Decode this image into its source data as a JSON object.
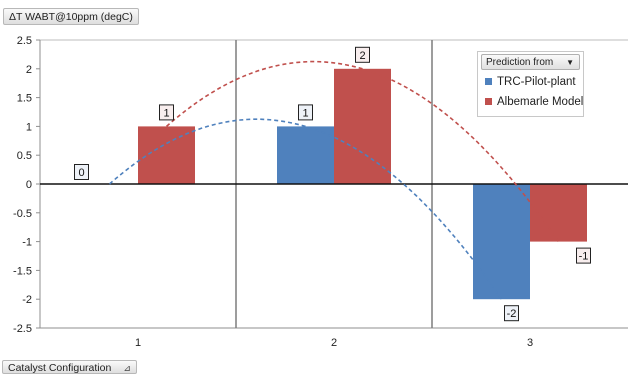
{
  "y_field_button": "ΔT WABT@10ppm (degC)",
  "x_field_button": "Catalyst Configuration",
  "legend": {
    "header": "Prediction from",
    "items": [
      {
        "label": "TRC-Pilot-plant",
        "color": "#4f81bd"
      },
      {
        "label": "Albemarle Model",
        "color": "#c0504d"
      }
    ]
  },
  "chart_data": {
    "type": "bar",
    "categories": [
      "1",
      "2",
      "3"
    ],
    "series": [
      {
        "name": "TRC-Pilot-plant",
        "color": "#4f81bd",
        "values": [
          0,
          1,
          -2
        ],
        "data_labels": [
          "0",
          "1",
          "-2"
        ],
        "trendline": "dashed"
      },
      {
        "name": "Albemarle Model",
        "color": "#c0504d",
        "values": [
          1,
          2,
          -1
        ],
        "data_labels": [
          "1",
          "2",
          "-1"
        ],
        "trendline": "dashed"
      }
    ],
    "ylim": [
      -2.5,
      2.5
    ],
    "yticks": [
      "2.5",
      "2",
      "1.5",
      "1",
      "0.5",
      "0",
      "-0.5",
      "-1",
      "-1.5",
      "-2",
      "-2.5"
    ],
    "xlabel": "",
    "ylabel": "",
    "grid": "vertical category separators",
    "legend_position": "top-right"
  }
}
